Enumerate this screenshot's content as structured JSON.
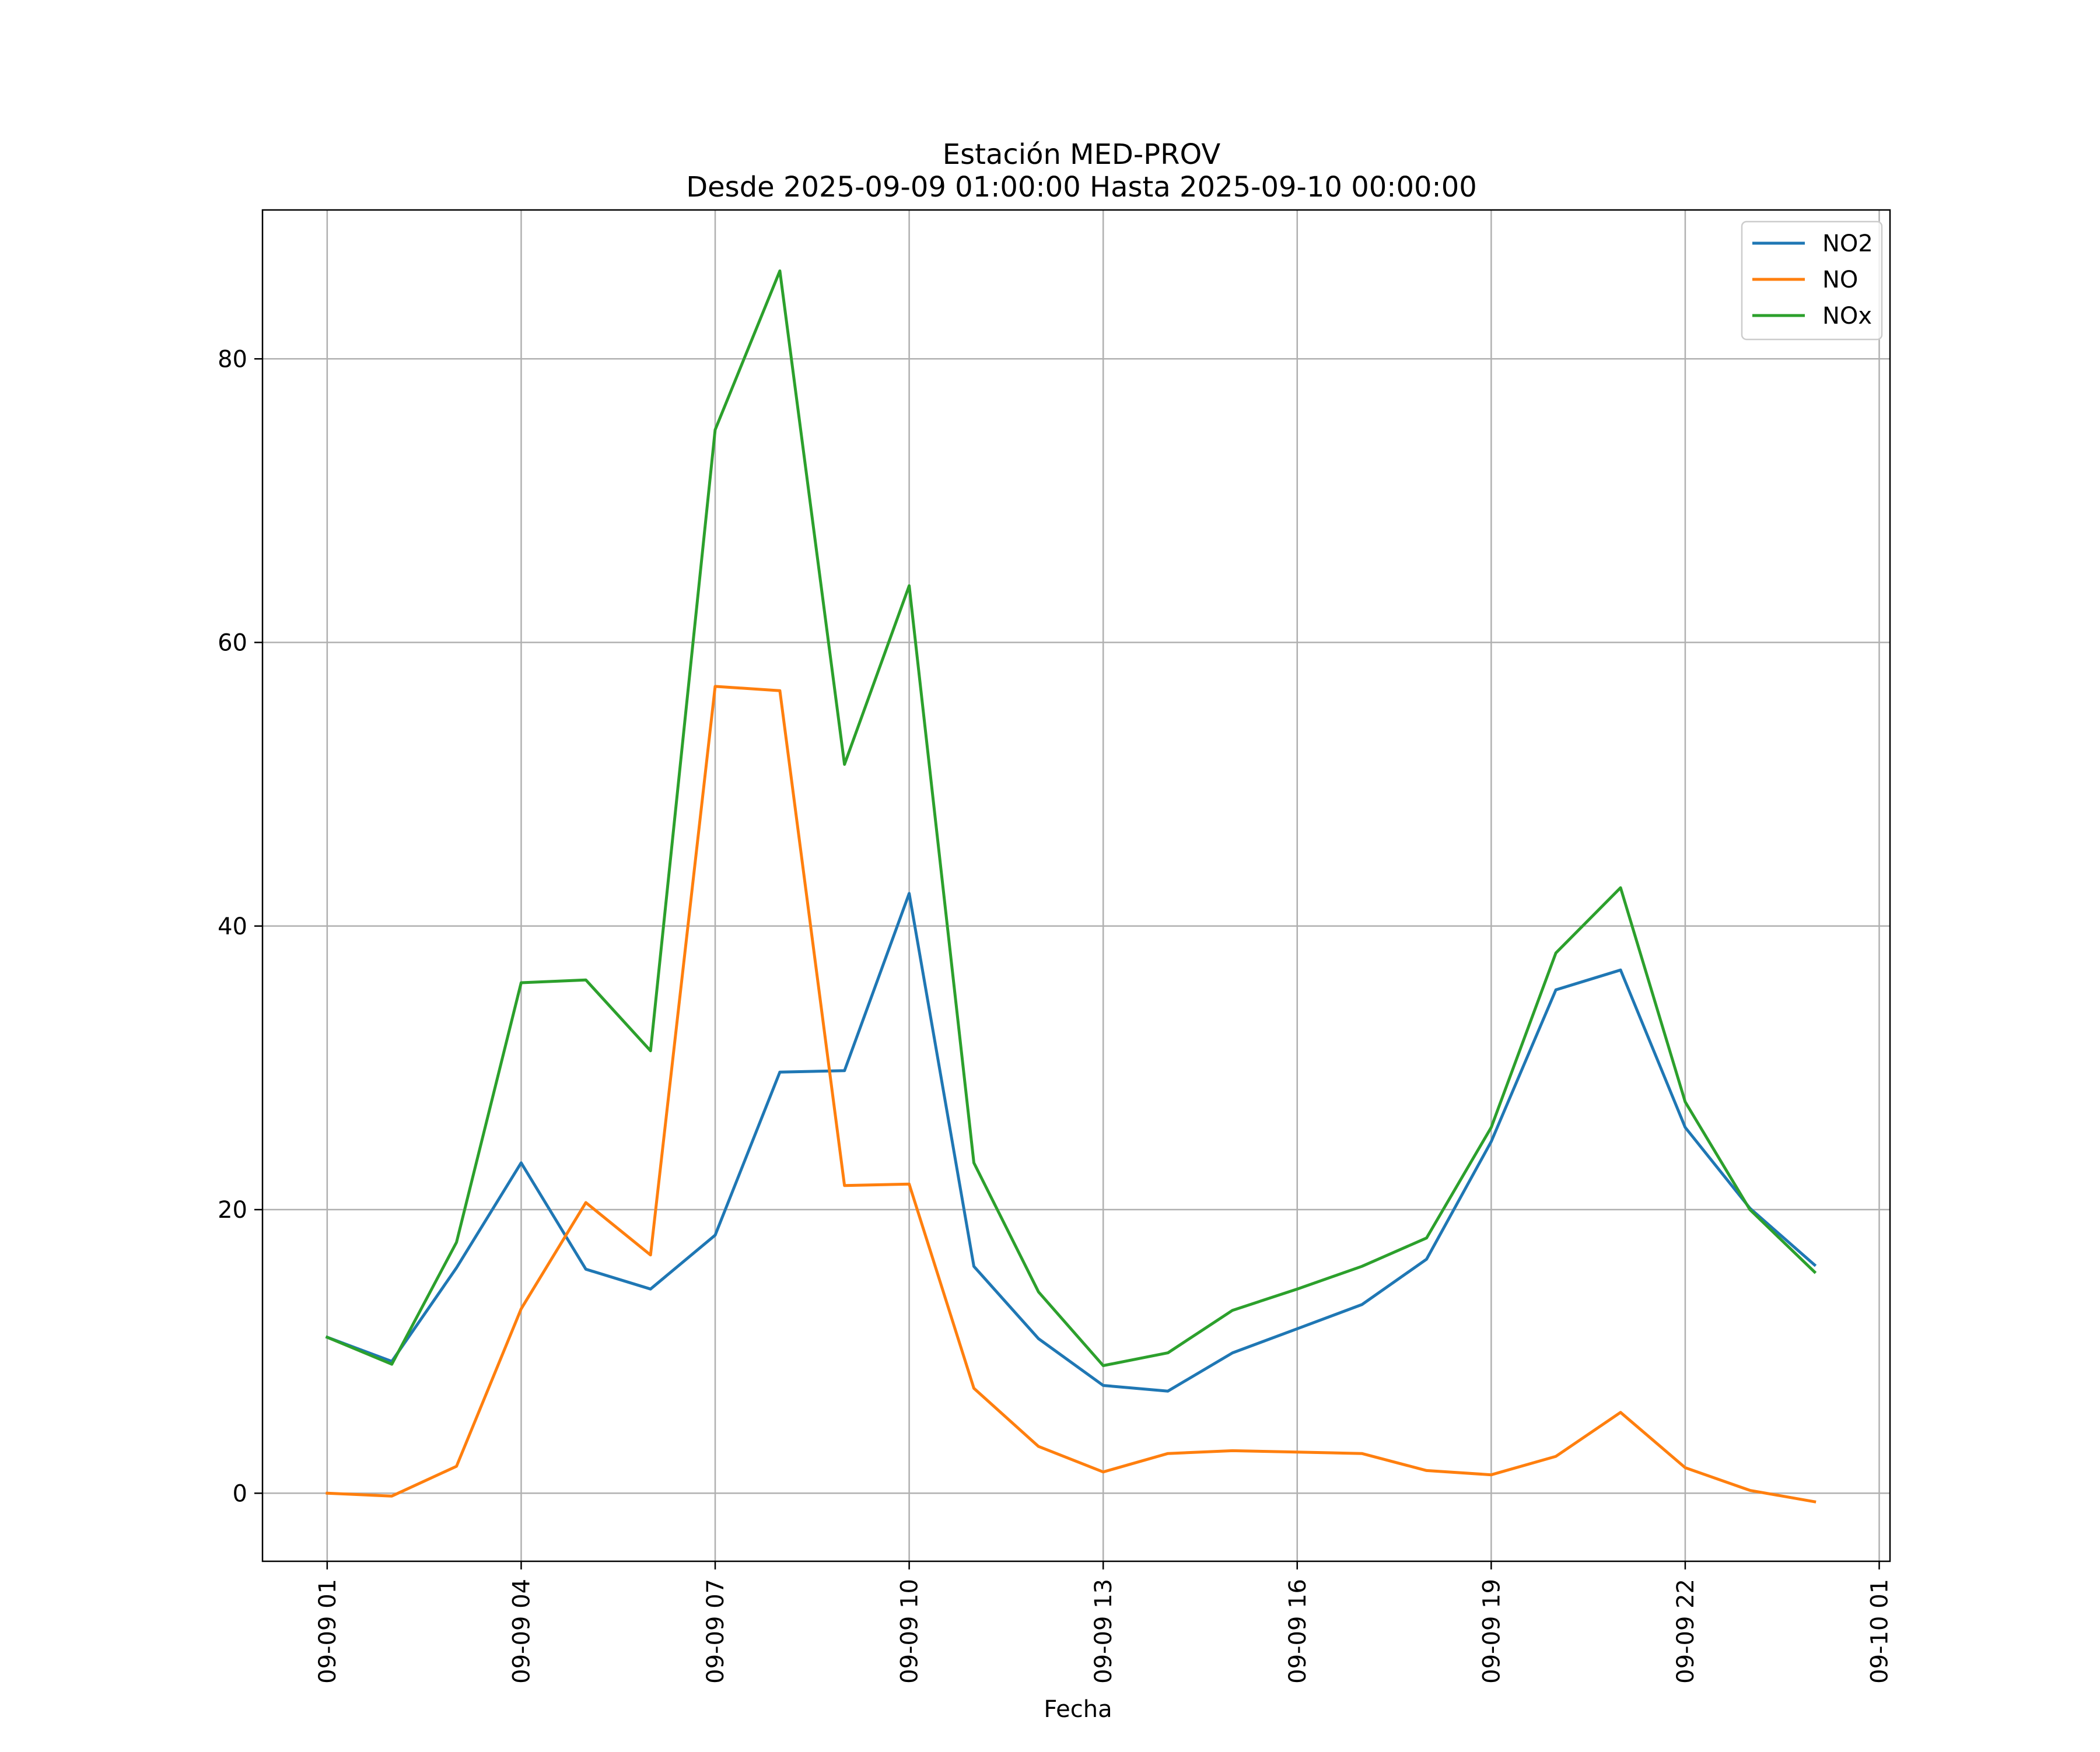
{
  "chart_data": {
    "type": "line",
    "title": "Estación MED-PROV",
    "subtitle": "Desde 2025-09-09 01:00:00 Hasta 2025-09-10 00:00:00",
    "xlabel": "Fecha",
    "ylabel": "",
    "x": [
      "2025-09-09 01:00",
      "2025-09-09 02:00",
      "2025-09-09 03:00",
      "2025-09-09 04:00",
      "2025-09-09 05:00",
      "2025-09-09 06:00",
      "2025-09-09 07:00",
      "2025-09-09 08:00",
      "2025-09-09 09:00",
      "2025-09-09 10:00",
      "2025-09-09 11:00",
      "2025-09-09 12:00",
      "2025-09-09 13:00",
      "2025-09-09 14:00",
      "2025-09-09 15:00",
      "2025-09-09 16:00",
      "2025-09-09 17:00",
      "2025-09-09 18:00",
      "2025-09-09 19:00",
      "2025-09-09 20:00",
      "2025-09-09 21:00",
      "2025-09-09 22:00",
      "2025-09-09 23:00",
      "2025-09-10 00:00"
    ],
    "xlim": [
      "2025-09-09 00:00",
      "2025-09-10 01:10"
    ],
    "ylim": [
      -4.8,
      90.5
    ],
    "x_ticks": [
      {
        "x": "2025-09-09 01:00",
        "label": "09-09 01"
      },
      {
        "x": "2025-09-09 04:00",
        "label": "09-09 04"
      },
      {
        "x": "2025-09-09 07:00",
        "label": "09-09 07"
      },
      {
        "x": "2025-09-09 10:00",
        "label": "09-09 10"
      },
      {
        "x": "2025-09-09 13:00",
        "label": "09-09 13"
      },
      {
        "x": "2025-09-09 16:00",
        "label": "09-09 16"
      },
      {
        "x": "2025-09-09 19:00",
        "label": "09-09 19"
      },
      {
        "x": "2025-09-09 22:00",
        "label": "09-09 22"
      },
      {
        "x": "2025-09-10 01:00",
        "label": "09-10 01"
      }
    ],
    "y_ticks": [
      {
        "y": 0,
        "label": "0"
      },
      {
        "y": 20,
        "label": "20"
      },
      {
        "y": 40,
        "label": "40"
      },
      {
        "y": 60,
        "label": "60"
      },
      {
        "y": 80,
        "label": "80"
      }
    ],
    "grid": true,
    "legend_position": "top-right",
    "series": [
      {
        "name": "NO2",
        "color": "#1f77b4",
        "values": [
          11.0,
          9.3,
          15.9,
          23.3,
          15.8,
          14.4,
          18.2,
          29.7,
          29.8,
          42.3,
          16.0,
          10.9,
          7.6,
          7.2,
          9.9,
          11.6,
          13.3,
          16.5,
          24.8,
          35.5,
          36.9,
          25.8,
          20.1,
          16.1
        ]
      },
      {
        "name": "NO",
        "color": "#ff7f0e",
        "values": [
          0.0,
          -0.2,
          1.9,
          13.0,
          20.5,
          16.8,
          56.9,
          56.6,
          21.7,
          21.8,
          7.4,
          3.3,
          1.5,
          2.8,
          3.0,
          2.9,
          2.8,
          1.6,
          1.3,
          2.6,
          5.7,
          1.8,
          0.2,
          -0.6
        ]
      },
      {
        "name": "NOx",
        "color": "#2ca02c",
        "values": [
          11.0,
          9.1,
          17.7,
          36.0,
          36.2,
          31.2,
          75.0,
          86.2,
          51.4,
          64.0,
          23.3,
          14.2,
          9.0,
          9.9,
          12.9,
          14.4,
          16.0,
          18.0,
          25.8,
          38.1,
          42.7,
          27.6,
          20.0,
          15.6
        ]
      }
    ]
  }
}
